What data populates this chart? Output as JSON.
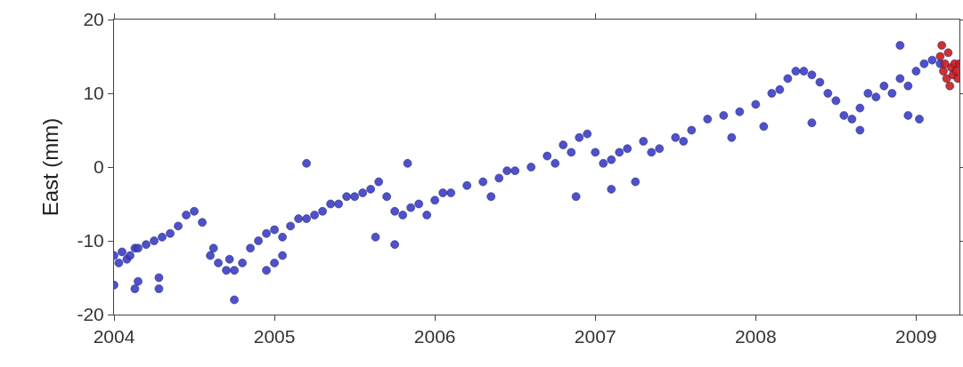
{
  "chart_data": {
    "type": "scatter",
    "ylabel": "East (mm)",
    "marker": "circle",
    "grid": false,
    "xlim": [
      2004,
      2009.27
    ],
    "xticks": [
      2004,
      2005,
      2006,
      2007,
      2008,
      2009
    ],
    "ylim": [
      -20,
      20
    ],
    "yticks": [
      -20,
      -10,
      0,
      10,
      20
    ],
    "series": [
      {
        "color": "#3a3fc8",
        "x": [
          2004.0,
          2004.03,
          2004.05,
          2004.08,
          2004.1,
          2004.13,
          2004.15,
          2004.2,
          2004.25,
          2004.3,
          2004.35,
          2004.4,
          2004.45,
          2004.5,
          2004.55,
          2004.6,
          2004.62,
          2004.65,
          2004.7,
          2004.72,
          2004.75,
          2004.8,
          2004.85,
          2004.9,
          2004.95,
          2005.0,
          2005.05,
          2005.1,
          2005.15,
          2005.2,
          2005.25,
          2005.3,
          2005.35,
          2005.4,
          2005.45,
          2005.5,
          2005.55,
          2005.6,
          2005.65,
          2005.7,
          2005.75,
          2005.8,
          2005.85,
          2005.9,
          2006.0,
          2006.05,
          2006.1,
          2006.2,
          2006.3,
          2006.4,
          2006.45,
          2006.5,
          2006.6,
          2006.7,
          2006.75,
          2006.8,
          2006.85,
          2006.9,
          2006.95,
          2007.0,
          2007.05,
          2007.1,
          2007.15,
          2007.2,
          2007.3,
          2007.35,
          2007.4,
          2007.5,
          2007.55,
          2007.6,
          2007.7,
          2007.8,
          2007.9,
          2008.0,
          2008.1,
          2008.15,
          2008.2,
          2008.25,
          2008.3,
          2008.35,
          2008.4,
          2008.45,
          2008.5,
          2008.55,
          2008.6,
          2008.65,
          2008.7,
          2008.75,
          2008.8,
          2008.85,
          2008.9,
          2008.95,
          2009.0,
          2009.05,
          2009.1,
          2009.15,
          2004.0,
          2004.13,
          2004.15,
          2004.28,
          2004.28,
          2004.75,
          2004.95,
          2005.0,
          2005.05,
          2005.2,
          2005.63,
          2005.75,
          2005.83,
          2005.95,
          2006.35,
          2006.88,
          2007.1,
          2007.25,
          2007.85,
          2008.05,
          2008.35,
          2008.65,
          2008.9,
          2008.95,
          2009.02
        ],
        "values": [
          -12,
          -13,
          -11.5,
          -12.5,
          -12,
          -11,
          -11,
          -10.5,
          -10,
          -9.5,
          -9,
          -8,
          -6.5,
          -6,
          -7.5,
          -12,
          -11,
          -13,
          -14,
          -12.5,
          -14,
          -13,
          -11,
          -10,
          -9,
          -8.5,
          -9.5,
          -8,
          -7,
          -7,
          -6.5,
          -6,
          -5,
          -5,
          -4,
          -4,
          -3.5,
          -3,
          -2,
          -4,
          -6,
          -6.5,
          -5.5,
          -5,
          -4.5,
          -3.5,
          -3.5,
          -2.5,
          -2,
          -1.5,
          -0.5,
          -0.5,
          0,
          1.5,
          0.5,
          3,
          2,
          4,
          4.5,
          2,
          0.5,
          1,
          2,
          2.5,
          3.5,
          2,
          2.5,
          4,
          3.5,
          5,
          6.5,
          7,
          7.5,
          8.5,
          10,
          10.5,
          12,
          13,
          13,
          12.5,
          11.5,
          10,
          9,
          7,
          6.5,
          8,
          10,
          9.5,
          11,
          10,
          12,
          11,
          13,
          14,
          14.5,
          14,
          -16,
          -16.5,
          -15.5,
          -15,
          -16.5,
          -18,
          -14,
          -13,
          -12,
          0.5,
          -9.5,
          -10.5,
          0.5,
          -6.5,
          -4,
          -4,
          -3,
          -2,
          4,
          5.5,
          6,
          5,
          16.5,
          7,
          6.5
        ]
      },
      {
        "color": "#cc1a1a",
        "x": [
          2009.15,
          2009.16,
          2009.17,
          2009.18,
          2009.19,
          2009.2,
          2009.21,
          2009.22,
          2009.23,
          2009.24,
          2009.25,
          2009.26,
          2009.27
        ],
        "values": [
          15,
          16.5,
          13,
          14,
          12,
          15.5,
          11,
          13.5,
          12.5,
          14,
          13,
          12,
          14
        ]
      }
    ]
  }
}
